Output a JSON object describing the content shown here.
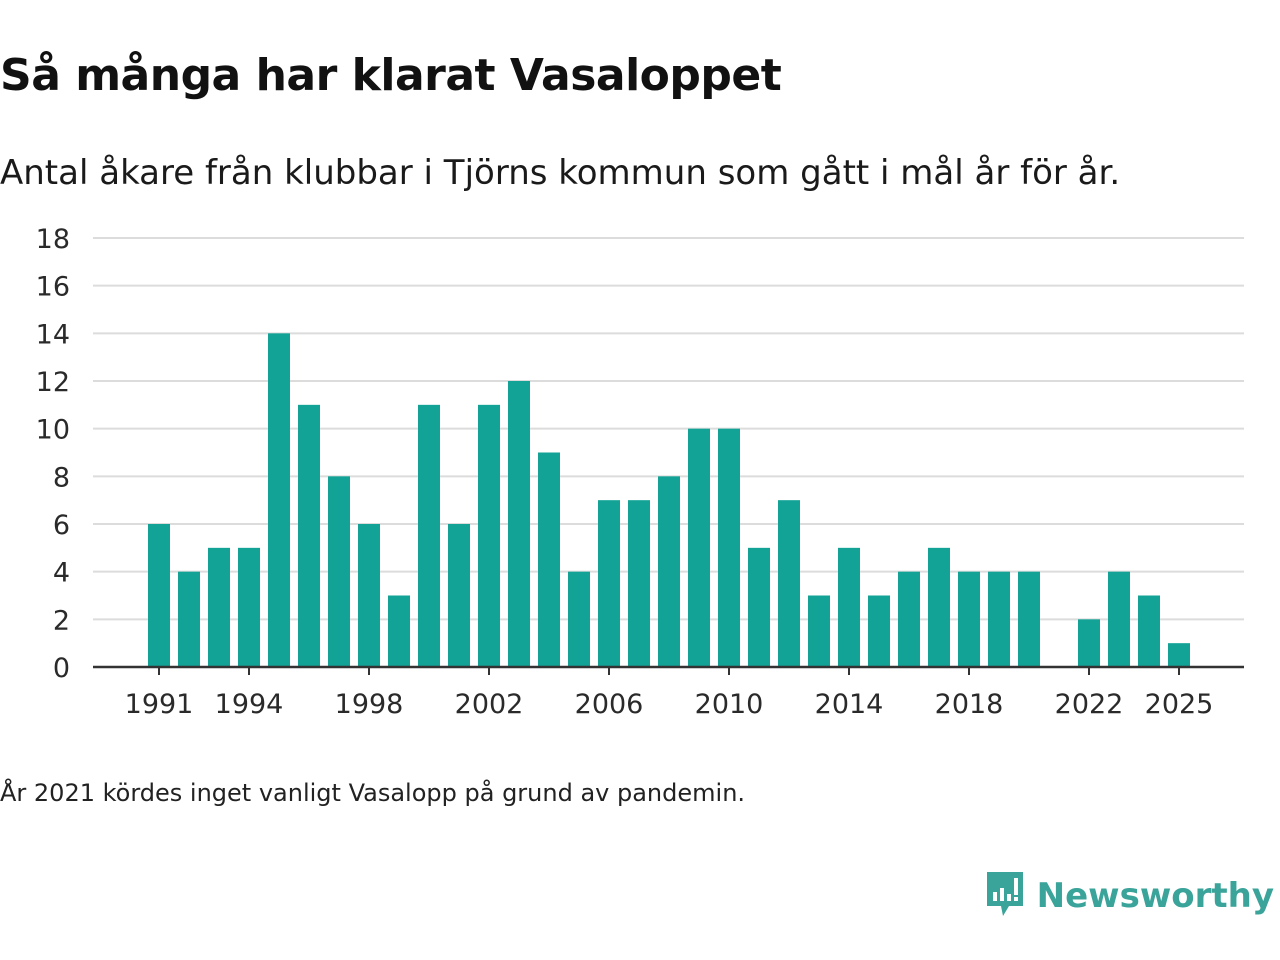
{
  "title": "Så många har klarat Vasaloppet",
  "subtitle": "Antal åkare från klubbar i Tjörns kommun som gått i mål år för år.",
  "note": "År 2021 kördes inget vanligt Vasalopp på grund av pandemin.",
  "brand": {
    "name": "Newsworthy",
    "icon": "newsworthy-logo-icon",
    "color": "#3aa39a"
  },
  "chart_data": {
    "type": "bar",
    "title": "Så många har klarat Vasaloppet",
    "xlabel": "",
    "ylabel": "",
    "bar_color": "#12a396",
    "ylim": [
      0,
      18
    ],
    "yticks": [
      "0",
      "2",
      "4",
      "6",
      "8",
      "10",
      "12",
      "14",
      "16",
      "18"
    ],
    "xticks": [
      "1991",
      "1994",
      "1998",
      "2002",
      "2006",
      "2010",
      "2014",
      "2018",
      "2022",
      "2025"
    ],
    "grid": true,
    "categories": [
      1991,
      1992,
      1993,
      1994,
      1995,
      1996,
      1997,
      1998,
      1999,
      2000,
      2001,
      2002,
      2003,
      2004,
      2005,
      2006,
      2007,
      2008,
      2009,
      2010,
      2011,
      2012,
      2013,
      2014,
      2015,
      2016,
      2017,
      2018,
      2019,
      2020,
      2021,
      2022,
      2023,
      2024,
      2025
    ],
    "values": [
      6,
      4,
      5,
      5,
      14,
      11,
      8,
      6,
      3,
      11,
      6,
      11,
      12,
      9,
      4,
      7,
      7,
      8,
      10,
      10,
      5,
      7,
      3,
      5,
      3,
      4,
      5,
      4,
      4,
      4,
      null,
      2,
      4,
      3,
      1
    ]
  }
}
